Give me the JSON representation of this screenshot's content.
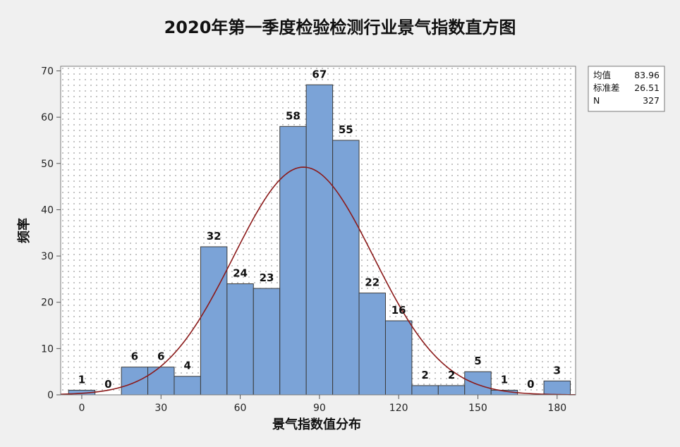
{
  "chart_data": {
    "type": "bar",
    "title": "2020年第一季度检验检测行业景气指数直方图",
    "xlabel": "景气指数值分布",
    "ylabel": "频率",
    "bin_width": 10,
    "bins": [
      {
        "center": 0,
        "count": 1
      },
      {
        "center": 10,
        "count": 0
      },
      {
        "center": 20,
        "count": 6
      },
      {
        "center": 30,
        "count": 6
      },
      {
        "center": 40,
        "count": 4
      },
      {
        "center": 50,
        "count": 32
      },
      {
        "center": 60,
        "count": 24
      },
      {
        "center": 70,
        "count": 23
      },
      {
        "center": 80,
        "count": 58
      },
      {
        "center": 90,
        "count": 67
      },
      {
        "center": 100,
        "count": 55
      },
      {
        "center": 110,
        "count": 22
      },
      {
        "center": 120,
        "count": 16
      },
      {
        "center": 130,
        "count": 2
      },
      {
        "center": 140,
        "count": 2
      },
      {
        "center": 150,
        "count": 5
      },
      {
        "center": 160,
        "count": 1
      },
      {
        "center": 170,
        "count": 0
      },
      {
        "center": 180,
        "count": 3
      }
    ],
    "x_ticks": [
      0,
      30,
      60,
      90,
      120,
      150,
      180
    ],
    "y_ticks": [
      0,
      10,
      20,
      30,
      40,
      50,
      60,
      70
    ],
    "xlim": [
      -8,
      187
    ],
    "ylim": [
      0,
      71
    ],
    "fit": {
      "type": "normal",
      "mean": 83.96,
      "stdev": 26.51,
      "n": 327
    },
    "stats_box": [
      {
        "label": "均值",
        "value": "83.96"
      },
      {
        "label": "标准差",
        "value": "26.51"
      },
      {
        "label": "N",
        "value": "327"
      }
    ],
    "grid": "dotted",
    "legend": "top-right",
    "colors": {
      "bar": "#7ba3d7",
      "bar_edge": "#3b3b3b",
      "fit_line": "#8b1a1a",
      "plot_bg": "#ffffff",
      "page_bg": "#f0f0f0"
    }
  }
}
